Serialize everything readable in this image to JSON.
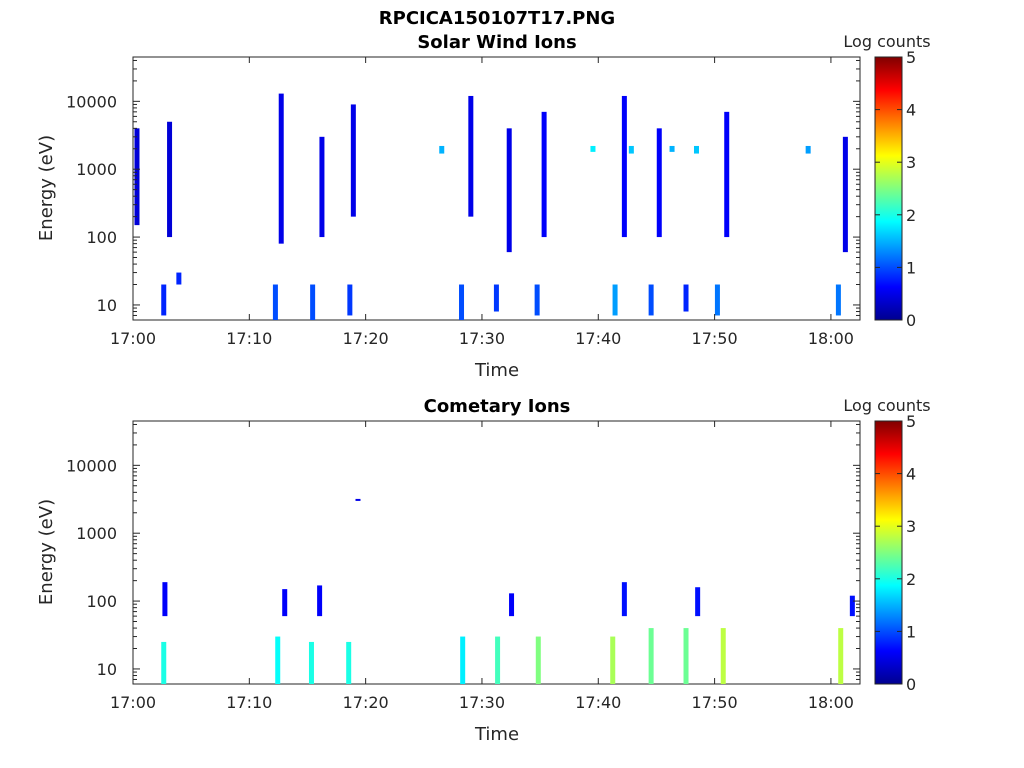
{
  "figure_title": "RPCICA150107T17.PNG",
  "colormap": [
    "#00008f",
    "#0000ff",
    "#0080ff",
    "#00ffff",
    "#80ff80",
    "#ffff00",
    "#ff8000",
    "#ff0000",
    "#800000"
  ],
  "chart_data": [
    {
      "type": "heatmap",
      "title": "Solar Wind Ions",
      "xlabel": "Time",
      "ylabel": "Energy (eV)",
      "yscale": "log",
      "ylim": [
        6,
        45000
      ],
      "xlim_minutes": [
        0,
        62.5
      ],
      "x_ticks": [
        "17:00",
        "17:10",
        "17:20",
        "17:30",
        "17:40",
        "17:50",
        "18:00"
      ],
      "y_ticks": [
        "10",
        "100",
        "1000",
        "10000"
      ],
      "colorbar": {
        "label": "Log counts",
        "range": [
          0,
          5
        ],
        "ticks": [
          "0",
          "1",
          "2",
          "3",
          "4",
          "5"
        ]
      },
      "bursts": [
        {
          "t": 0.3,
          "emin": 150,
          "emax": 4000,
          "level": 0.4
        },
        {
          "t": 2.6,
          "emin": 7,
          "emax": 20,
          "level": 0.8
        },
        {
          "t": 3.1,
          "emin": 100,
          "emax": 5000,
          "level": 0.4
        },
        {
          "t": 3.9,
          "emin": 20,
          "emax": 30,
          "level": 0.8
        },
        {
          "t": 12.2,
          "emin": 6,
          "emax": 20,
          "level": 1.0
        },
        {
          "t": 12.7,
          "emin": 80,
          "emax": 13000,
          "level": 0.5
        },
        {
          "t": 15.4,
          "emin": 6,
          "emax": 20,
          "level": 1.0
        },
        {
          "t": 16.2,
          "emin": 100,
          "emax": 3000,
          "level": 0.5
        },
        {
          "t": 18.6,
          "emin": 7,
          "emax": 20,
          "level": 0.9
        },
        {
          "t": 18.9,
          "emin": 200,
          "emax": 9000,
          "level": 0.5
        },
        {
          "t": 26.5,
          "emin": 1700,
          "emax": 2200,
          "level": 1.5
        },
        {
          "t": 28.2,
          "emin": 6,
          "emax": 20,
          "level": 1.0
        },
        {
          "t": 29.0,
          "emin": 200,
          "emax": 12000,
          "level": 0.5
        },
        {
          "t": 31.2,
          "emin": 8,
          "emax": 20,
          "level": 0.9
        },
        {
          "t": 32.3,
          "emin": 60,
          "emax": 4000,
          "level": 0.5
        },
        {
          "t": 34.7,
          "emin": 7,
          "emax": 20,
          "level": 1.0
        },
        {
          "t": 35.3,
          "emin": 100,
          "emax": 7000,
          "level": 0.6
        },
        {
          "t": 39.5,
          "emin": 1800,
          "emax": 2200,
          "level": 1.8
        },
        {
          "t": 41.4,
          "emin": 7,
          "emax": 20,
          "level": 1.4
        },
        {
          "t": 42.2,
          "emin": 100,
          "emax": 12000,
          "level": 0.6
        },
        {
          "t": 42.8,
          "emin": 1700,
          "emax": 2200,
          "level": 1.6
        },
        {
          "t": 44.5,
          "emin": 7,
          "emax": 20,
          "level": 1.0
        },
        {
          "t": 45.2,
          "emin": 100,
          "emax": 4000,
          "level": 0.6
        },
        {
          "t": 46.3,
          "emin": 1800,
          "emax": 2200,
          "level": 1.5
        },
        {
          "t": 47.5,
          "emin": 8,
          "emax": 20,
          "level": 0.8
        },
        {
          "t": 48.4,
          "emin": 1700,
          "emax": 2200,
          "level": 1.6
        },
        {
          "t": 50.2,
          "emin": 7,
          "emax": 20,
          "level": 1.2
        },
        {
          "t": 51.0,
          "emin": 100,
          "emax": 7000,
          "level": 0.6
        },
        {
          "t": 58.0,
          "emin": 1700,
          "emax": 2200,
          "level": 1.4
        },
        {
          "t": 60.6,
          "emin": 7,
          "emax": 20,
          "level": 1.2
        },
        {
          "t": 61.2,
          "emin": 60,
          "emax": 3000,
          "level": 0.5
        }
      ]
    },
    {
      "type": "heatmap",
      "title": "Cometary Ions",
      "xlabel": "Time",
      "ylabel": "Energy (eV)",
      "yscale": "log",
      "ylim": [
        6,
        45000
      ],
      "xlim_minutes": [
        0,
        62.5
      ],
      "x_ticks": [
        "17:00",
        "17:10",
        "17:20",
        "17:30",
        "17:40",
        "17:50",
        "18:00"
      ],
      "y_ticks": [
        "10",
        "100",
        "1000",
        "10000"
      ],
      "colorbar": {
        "label": "Log counts",
        "range": [
          0,
          5
        ],
        "ticks": [
          "0",
          "1",
          "2",
          "3",
          "4",
          "5"
        ]
      },
      "bursts": [
        {
          "t": 2.6,
          "emin": 6,
          "emax": 25,
          "level": 2.0
        },
        {
          "t": 2.7,
          "emin": 60,
          "emax": 190,
          "level": 0.6
        },
        {
          "t": 12.4,
          "emin": 6,
          "emax": 30,
          "level": 1.9
        },
        {
          "t": 13.0,
          "emin": 60,
          "emax": 150,
          "level": 0.6
        },
        {
          "t": 15.3,
          "emin": 6,
          "emax": 25,
          "level": 2.0
        },
        {
          "t": 16.0,
          "emin": 60,
          "emax": 170,
          "level": 0.6
        },
        {
          "t": 18.5,
          "emin": 6,
          "emax": 25,
          "level": 2.0
        },
        {
          "t": 19.3,
          "emin": 3000,
          "emax": 3200,
          "level": 0.5
        },
        {
          "t": 28.3,
          "emin": 6,
          "emax": 30,
          "level": 1.8
        },
        {
          "t": 31.3,
          "emin": 6,
          "emax": 30,
          "level": 2.2
        },
        {
          "t": 32.5,
          "emin": 60,
          "emax": 130,
          "level": 0.6
        },
        {
          "t": 34.8,
          "emin": 6,
          "emax": 30,
          "level": 2.5
        },
        {
          "t": 41.2,
          "emin": 6,
          "emax": 30,
          "level": 2.7
        },
        {
          "t": 42.2,
          "emin": 60,
          "emax": 190,
          "level": 0.7
        },
        {
          "t": 44.5,
          "emin": 6,
          "emax": 40,
          "level": 2.4
        },
        {
          "t": 47.5,
          "emin": 6,
          "emax": 40,
          "level": 2.4
        },
        {
          "t": 48.5,
          "emin": 60,
          "emax": 160,
          "level": 0.7
        },
        {
          "t": 50.7,
          "emin": 6,
          "emax": 40,
          "level": 2.8
        },
        {
          "t": 60.8,
          "emin": 6,
          "emax": 40,
          "level": 2.8
        },
        {
          "t": 61.8,
          "emin": 60,
          "emax": 120,
          "level": 0.7
        }
      ]
    }
  ]
}
